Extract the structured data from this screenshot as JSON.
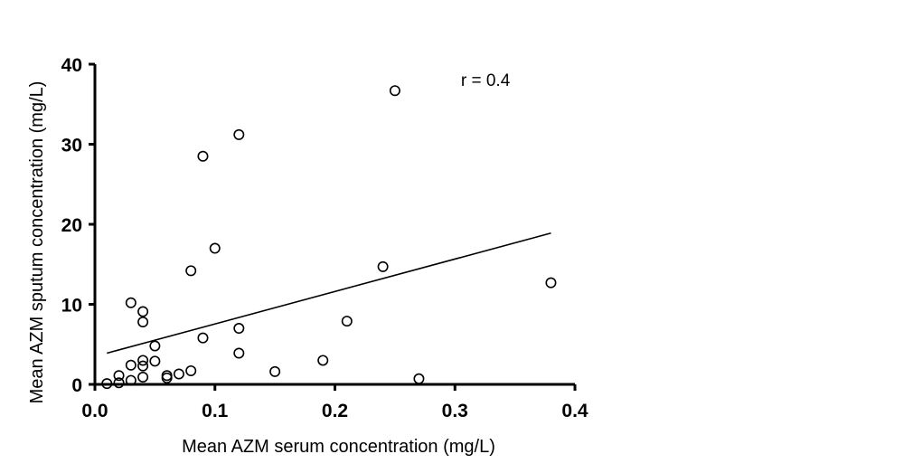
{
  "chart_data": {
    "type": "scatter",
    "title": "",
    "xlabel": "Mean AZM serum concentration (mg/L)",
    "ylabel": "Mean AZM sputum concentration (mg/L)",
    "xlim": [
      0,
      0.4
    ],
    "ylim": [
      0,
      40
    ],
    "x_ticks": [
      0.0,
      0.1,
      0.2,
      0.3,
      0.4
    ],
    "x_tick_labels": [
      "0.0",
      "0.1",
      "0.2",
      "0.3",
      "0.4"
    ],
    "y_ticks": [
      0,
      10,
      20,
      30,
      40
    ],
    "y_tick_labels": [
      "0",
      "10",
      "20",
      "30",
      "40"
    ],
    "grid": false,
    "marker": "open-circle",
    "color": "#000000",
    "points": [
      {
        "x": 0.01,
        "y": 0.1
      },
      {
        "x": 0.02,
        "y": 0.2
      },
      {
        "x": 0.02,
        "y": 1.1
      },
      {
        "x": 0.03,
        "y": 0.5
      },
      {
        "x": 0.03,
        "y": 2.4
      },
      {
        "x": 0.03,
        "y": 10.2
      },
      {
        "x": 0.04,
        "y": 0.9
      },
      {
        "x": 0.04,
        "y": 2.3
      },
      {
        "x": 0.04,
        "y": 3.0
      },
      {
        "x": 0.04,
        "y": 7.8
      },
      {
        "x": 0.04,
        "y": 9.1
      },
      {
        "x": 0.05,
        "y": 2.9
      },
      {
        "x": 0.05,
        "y": 4.8
      },
      {
        "x": 0.06,
        "y": 0.8
      },
      {
        "x": 0.06,
        "y": 1.1
      },
      {
        "x": 0.07,
        "y": 1.3
      },
      {
        "x": 0.08,
        "y": 1.7
      },
      {
        "x": 0.08,
        "y": 14.2
      },
      {
        "x": 0.09,
        "y": 5.8
      },
      {
        "x": 0.09,
        "y": 28.5
      },
      {
        "x": 0.1,
        "y": 17.0
      },
      {
        "x": 0.12,
        "y": 3.9
      },
      {
        "x": 0.12,
        "y": 7.0
      },
      {
        "x": 0.12,
        "y": 31.2
      },
      {
        "x": 0.15,
        "y": 1.6
      },
      {
        "x": 0.19,
        "y": 3.0
      },
      {
        "x": 0.21,
        "y": 7.9
      },
      {
        "x": 0.24,
        "y": 14.7
      },
      {
        "x": 0.25,
        "y": 36.7
      },
      {
        "x": 0.27,
        "y": 0.7
      },
      {
        "x": 0.38,
        "y": 12.7
      }
    ],
    "regression_line": {
      "x": [
        0.01,
        0.38
      ],
      "y": [
        3.9,
        18.9
      ]
    },
    "annotations": [
      {
        "text": "r = 0.4",
        "x": 0.305,
        "y": 37.3
      }
    ]
  }
}
